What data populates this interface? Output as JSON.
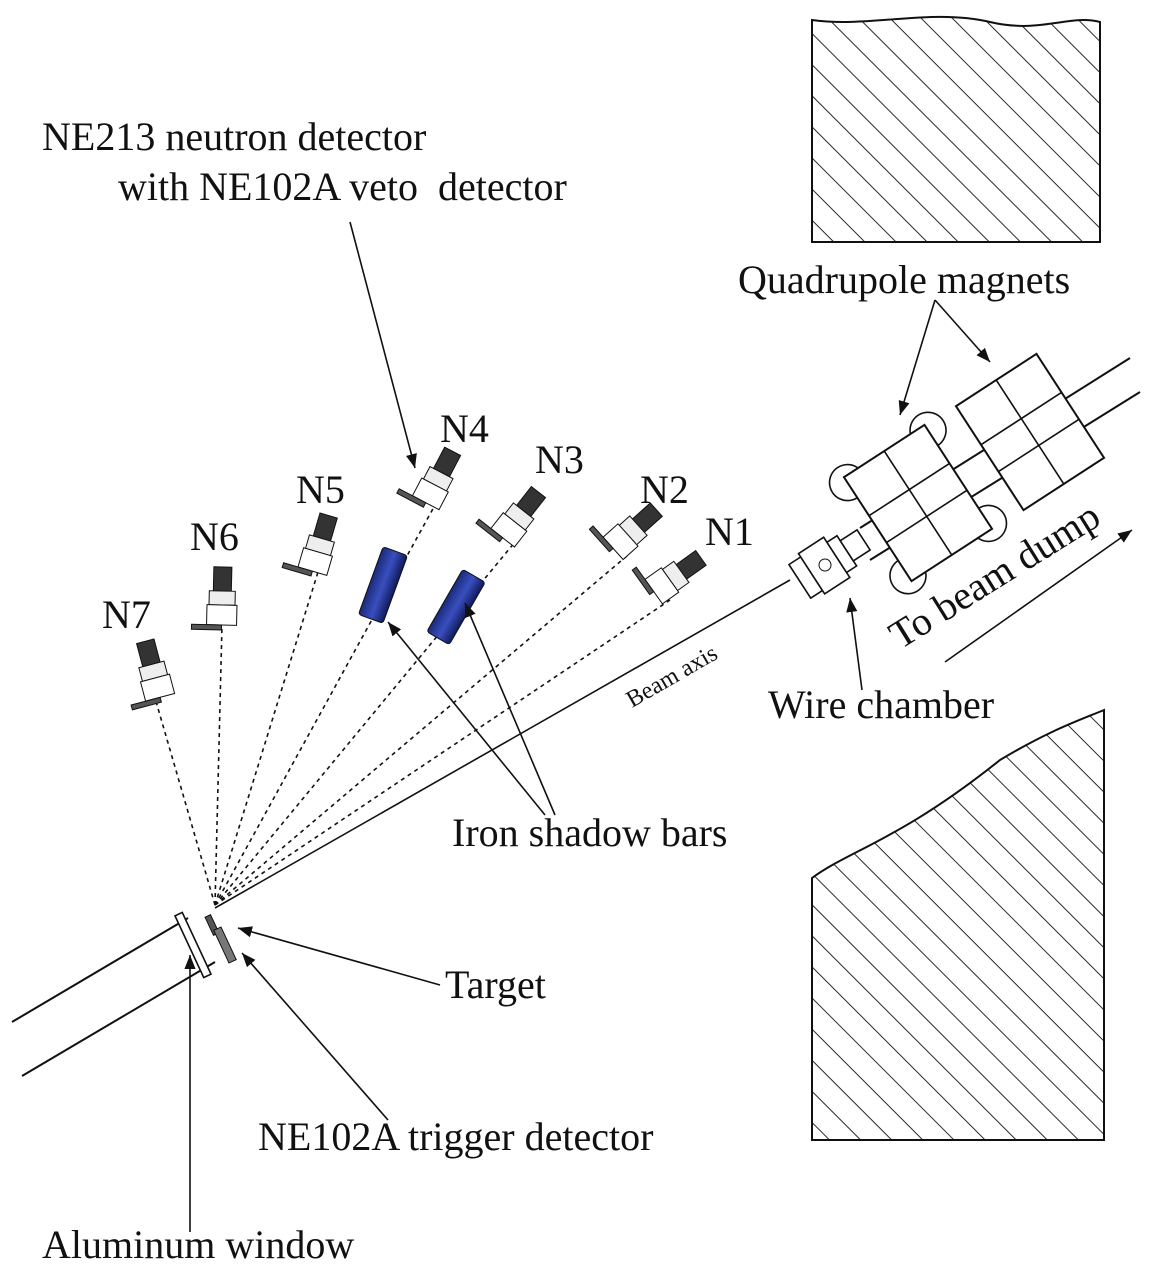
{
  "callouts": {
    "neutron_detector": [
      "NE213 neutron detector",
      "with NE102A veto  detector"
    ],
    "quadrupole_magnets": "Quadrupole magnets",
    "beam_axis": "Beam axis",
    "wire_chamber": "Wire chamber",
    "beam_dump": "To beam dump",
    "shadow_bars": "Iron shadow bars",
    "target": "Target",
    "trigger_detector": "NE102A trigger detector",
    "aluminum_window": "Aluminum window"
  },
  "detectors": [
    "N1",
    "N2",
    "N3",
    "N4",
    "N5",
    "N6",
    "N7"
  ]
}
